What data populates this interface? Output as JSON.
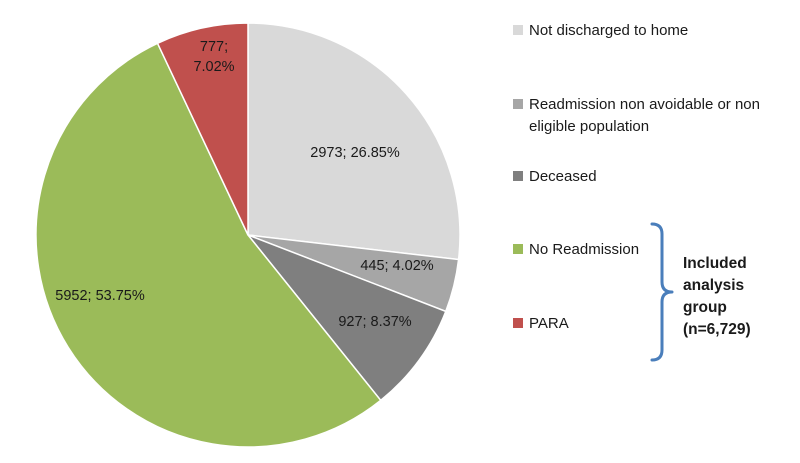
{
  "chart_data": {
    "type": "pie",
    "slices": [
      {
        "name": "Not discharged to home",
        "value": 2973,
        "percent": "26.85%",
        "label": "2973; 26.85%",
        "color": "#d9d9d9"
      },
      {
        "name": "Readmission non avoidable or non eligible population",
        "value": 445,
        "percent": "4.02%",
        "label": "445; 4.02%",
        "color": "#a6a6a6"
      },
      {
        "name": "Deceased",
        "value": 927,
        "percent": "8.37%",
        "label": "927; 8.37%",
        "color": "#7f7f7f"
      },
      {
        "name": "No Readmission",
        "value": 5952,
        "percent": "53.75%",
        "label": "5952; 53.75%",
        "color": "#9bbb59"
      },
      {
        "name": "PARA",
        "value": 777,
        "percent": "7.02%",
        "label": "777;\n7.02%",
        "color": "#c0504d"
      }
    ],
    "legend": {
      "placement": "right",
      "items": [
        {
          "line1": "Not discharged to home",
          "line2": "",
          "color": "#d9d9d9"
        },
        {
          "line1": "Readmission non avoidable or non",
          "line2": "eligible population",
          "color": "#a6a6a6"
        },
        {
          "line1": "Deceased",
          "line2": "",
          "color": "#7f7f7f"
        },
        {
          "line1": "No Readmission",
          "line2": "",
          "color": "#9bbb59"
        },
        {
          "line1": "PARA",
          "line2": "",
          "color": "#c0504d"
        }
      ]
    },
    "annotation": {
      "lines": [
        "Included",
        "analysis",
        "group",
        "(n=6,729)"
      ],
      "bracket_color": "#4a7ebb"
    }
  }
}
